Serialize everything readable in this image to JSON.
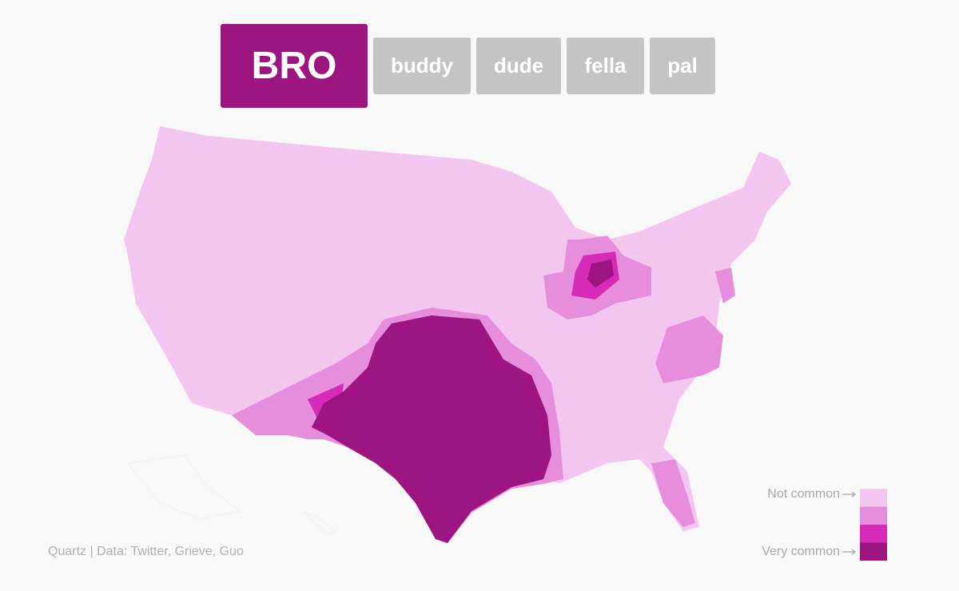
{
  "tabs": [
    {
      "label": "BRO",
      "active": true
    },
    {
      "label": "buddy",
      "active": false
    },
    {
      "label": "dude",
      "active": false
    },
    {
      "label": "fella",
      "active": false
    },
    {
      "label": "pal",
      "active": false
    }
  ],
  "legend": {
    "labels": [
      "Not common",
      "Very common"
    ],
    "colors": [
      "#f3c6ef",
      "#e68ddc",
      "#d62bb9",
      "#9c1580"
    ]
  },
  "source": "Quartz | Data: Twitter, Grieve, Guo"
}
